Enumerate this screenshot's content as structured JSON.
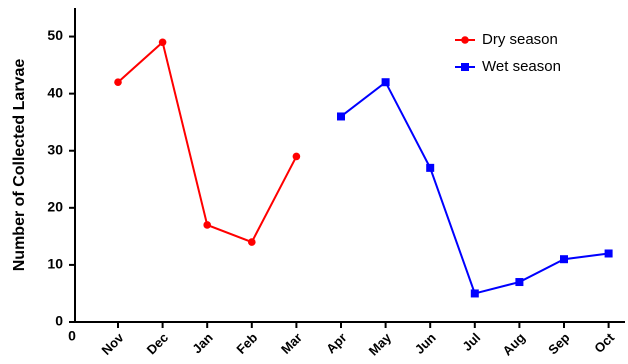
{
  "chart_data": {
    "type": "line",
    "y_label": "Number of Collected Larvae",
    "x_origin_label": "0",
    "categories": [
      "Nov",
      "Dec",
      "Jan",
      "Feb",
      "Mar",
      "Apr",
      "May",
      "Jun",
      "Jul",
      "Aug",
      "Sep",
      "Oct"
    ],
    "series": [
      {
        "name": "Dry season",
        "color": "#ff0000",
        "marker": "circle",
        "values": [
          42,
          49,
          17,
          14,
          29,
          null,
          null,
          null,
          null,
          null,
          null,
          null
        ]
      },
      {
        "name": "Wet season",
        "color": "#0000ff",
        "marker": "square",
        "values": [
          null,
          null,
          null,
          null,
          null,
          36,
          42,
          27,
          5,
          7,
          11,
          12
        ]
      }
    ],
    "ylim": [
      0,
      55
    ],
    "yticks": [
      0,
      10,
      20,
      30,
      40,
      50
    ],
    "legend": "top-right",
    "grid": false
  }
}
